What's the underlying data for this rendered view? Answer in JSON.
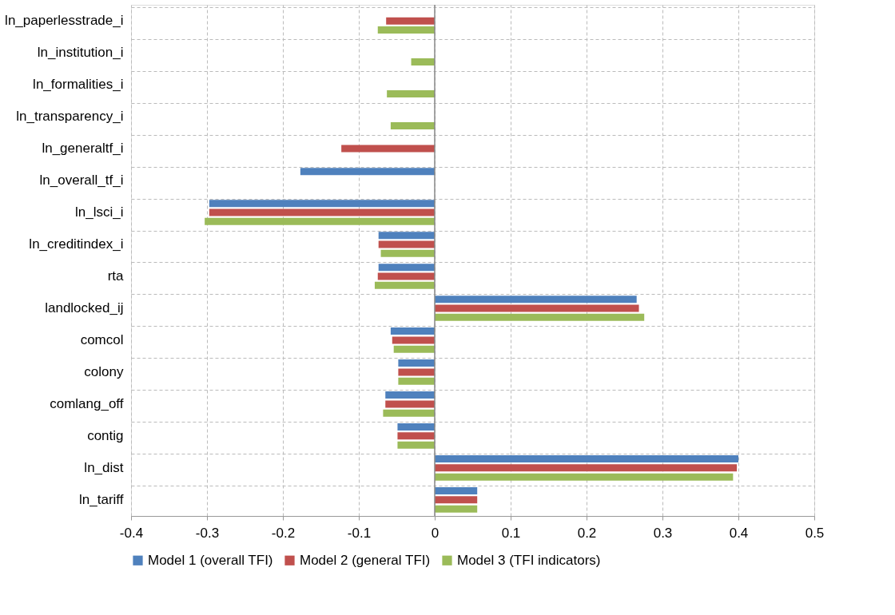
{
  "chart_data": {
    "type": "bar",
    "orientation": "horizontal",
    "categories": [
      "ln_paperlesstrade_i",
      "ln_institution_i",
      "ln_formalities_i",
      "ln_transparency_i",
      "ln_generaltf_i",
      "ln_overall_tf_i",
      "ln_lsci_i",
      "ln_creditindex_i",
      "rta",
      "landlocked_ij",
      "comcol",
      "colony",
      "comlang_off",
      "contig",
      "ln_dist",
      "ln_tariff"
    ],
    "series": [
      {
        "name": "Model 1 (overall TFI)",
        "color": "#4f81bd",
        "values": [
          null,
          null,
          null,
          null,
          null,
          -0.177,
          -0.297,
          -0.074,
          -0.074,
          0.266,
          -0.058,
          -0.048,
          -0.065,
          -0.049,
          0.4,
          0.056
        ]
      },
      {
        "name": "Model 2 (general TFI)",
        "color": "#c0504d",
        "values": [
          -0.064,
          null,
          null,
          null,
          -0.123,
          null,
          -0.297,
          -0.074,
          -0.075,
          0.269,
          -0.056,
          -0.048,
          -0.065,
          -0.049,
          0.398,
          0.056
        ]
      },
      {
        "name": "Model 3 (TFI indicators)",
        "color": "#9bbb59",
        "values": [
          -0.075,
          -0.031,
          -0.063,
          -0.058,
          null,
          null,
          -0.303,
          -0.071,
          -0.079,
          0.276,
          -0.054,
          -0.048,
          -0.068,
          -0.049,
          0.393,
          0.056
        ]
      }
    ],
    "xlim": [
      -0.4,
      0.5
    ],
    "xticks": [
      -0.4,
      -0.3,
      -0.2,
      -0.1,
      0,
      0.1,
      0.2,
      0.3,
      0.4,
      0.5
    ],
    "grid": true,
    "legend": "bottom"
  }
}
